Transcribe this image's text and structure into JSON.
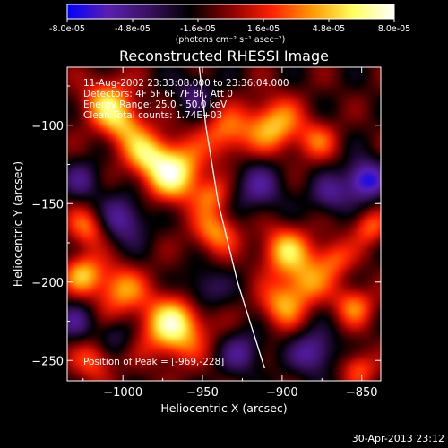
{
  "colorbar": {
    "tick_labels": [
      "-8.0e-05",
      "-4.8e-05",
      "-1.6e-05",
      "1.6e-05",
      "4.8e-05",
      "8.0e-05"
    ],
    "tick_values": [
      -8e-05,
      -4.8e-05,
      -1.6e-05,
      1.6e-05,
      4.8e-05,
      8e-05
    ],
    "range": [
      -8e-05,
      8e-05
    ],
    "unit_label": "(photons cm⁻² s⁻¹ asec⁻²)",
    "colormap": [
      "#0000ff",
      "#5a1fb0",
      "#3a1060",
      "#000000",
      "#8a0000",
      "#ff2000",
      "#ff9a00",
      "#ffff60",
      "#ffffff"
    ]
  },
  "chart_data": {
    "type": "heatmap",
    "title": "Reconstructed RHESSI Image",
    "xlabel": "Heliocentric X (arcsec)",
    "ylabel": "Heliocentric Y (arcsec)",
    "xlim": [
      -1035,
      -838
    ],
    "ylim": [
      -263,
      -63
    ],
    "x_ticks": [
      -1000,
      -950,
      -900,
      -850
    ],
    "y_ticks": [
      -100,
      -150,
      -200,
      -250
    ],
    "x_tick_labels": [
      "−1000",
      "−950",
      "−900",
      "−850"
    ],
    "y_tick_labels": [
      "−100",
      "−150",
      "−200",
      "−250"
    ],
    "limb": [
      [
        -952,
        -63
      ],
      [
        -948,
        -100
      ],
      [
        -940,
        -150
      ],
      [
        -928,
        -200
      ],
      [
        -911,
        -255
      ]
    ],
    "peak": [
      -969,
      -228
    ],
    "sources": [
      {
        "x": -968,
        "y": -130,
        "amp": 8e-05,
        "s": 13
      },
      {
        "x": -986,
        "y": -118,
        "amp": 5e-05,
        "s": 10
      },
      {
        "x": -1010,
        "y": -85,
        "amp": 5.5e-05,
        "s": 11
      },
      {
        "x": -1000,
        "y": -100,
        "amp": 4.5e-05,
        "s": 10
      },
      {
        "x": -935,
        "y": -105,
        "amp": 4.5e-05,
        "s": 11
      },
      {
        "x": -905,
        "y": -100,
        "amp": 6e-05,
        "s": 12
      },
      {
        "x": -878,
        "y": -110,
        "amp": 3.5e-05,
        "s": 9
      },
      {
        "x": -968,
        "y": -228,
        "amp": 8e-05,
        "s": 14
      },
      {
        "x": -1002,
        "y": -205,
        "amp": 5e-05,
        "s": 11
      },
      {
        "x": -1025,
        "y": -195,
        "amp": 5.5e-05,
        "s": 9
      },
      {
        "x": -1022,
        "y": -165,
        "amp": 4.5e-05,
        "s": 9
      },
      {
        "x": -942,
        "y": -168,
        "amp": 5e-05,
        "s": 10
      },
      {
        "x": -944,
        "y": -145,
        "amp": 3.5e-05,
        "s": 8
      },
      {
        "x": -898,
        "y": -180,
        "amp": 6e-05,
        "s": 11
      },
      {
        "x": -885,
        "y": -200,
        "amp": 4.5e-05,
        "s": 10
      },
      {
        "x": -900,
        "y": -215,
        "amp": 5e-05,
        "s": 10
      },
      {
        "x": -868,
        "y": -185,
        "amp": 4e-05,
        "s": 9
      },
      {
        "x": -855,
        "y": -215,
        "amp": 4.5e-05,
        "s": 9
      },
      {
        "x": -845,
        "y": -165,
        "amp": 4e-05,
        "s": 8
      },
      {
        "x": -1018,
        "y": -250,
        "amp": 4e-05,
        "s": 9
      },
      {
        "x": -852,
        "y": -255,
        "amp": 4e-05,
        "s": 8
      },
      {
        "x": -880,
        "y": -245,
        "amp": -4.5e-05,
        "s": 10
      },
      {
        "x": -1000,
        "y": -160,
        "amp": -4.5e-05,
        "s": 11
      },
      {
        "x": -915,
        "y": -140,
        "amp": -3.5e-05,
        "s": 12
      },
      {
        "x": -848,
        "y": -135,
        "amp": -6.5e-05,
        "s": 9
      },
      {
        "x": -1025,
        "y": -135,
        "amp": -3e-05,
        "s": 9
      },
      {
        "x": -950,
        "y": -205,
        "amp": -3.5e-05,
        "s": 10
      },
      {
        "x": -1030,
        "y": -225,
        "amp": -3e-05,
        "s": 9
      },
      {
        "x": -925,
        "y": -245,
        "amp": -3.5e-05,
        "s": 10
      },
      {
        "x": -955,
        "y": -80,
        "amp": -3e-05,
        "s": 9
      },
      {
        "x": -870,
        "y": -145,
        "amp": -3.5e-05,
        "s": 9
      },
      {
        "x": -1005,
        "y": -235,
        "amp": -2.5e-05,
        "s": 8
      }
    ]
  },
  "annotations": {
    "time_range": "11-Aug-2002 23:33:08.000 to 23:36:04.000",
    "detectors": "Detectors: 4F 5F 6F 7F 8F, Att 0",
    "energy": "Energy Range: 25.0 - 50.0 keV",
    "clean": "Clean     Total counts: 1.74E+03",
    "peak": "Position of Peak = [-969,-228]"
  },
  "footer": {
    "timestamp": "30-Apr-2013 23:12"
  }
}
